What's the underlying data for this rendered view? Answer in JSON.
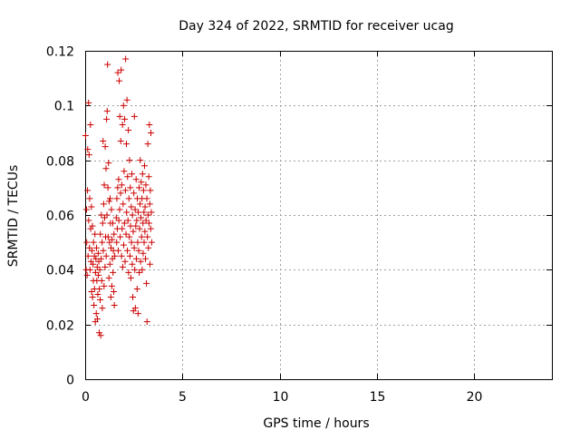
{
  "chart_data": {
    "type": "scatter",
    "title": "Day 324 of 2022, SRMTID for receiver ucag",
    "xlabel": "GPS time / hours",
    "ylabel": "SRMTID / TECUs",
    "xlim": [
      0,
      24
    ],
    "ylim": [
      0,
      0.12
    ],
    "x_ticks": [
      0,
      5,
      10,
      15,
      20
    ],
    "y_ticks": [
      0,
      0.02,
      0.04,
      0.06,
      0.08,
      0.1,
      0.12
    ],
    "x_tick_labels": [
      "0",
      "5",
      "10",
      "15",
      "20"
    ],
    "y_tick_labels": [
      "0",
      "0.02",
      "0.04",
      "0.06",
      "0.08",
      "0.1",
      "0.12"
    ],
    "grid": true,
    "marker": "plus",
    "color": "#cc0000",
    "series": [
      {
        "points": [
          [
            0.02,
            0.089
          ],
          [
            0.05,
            0.04
          ],
          [
            0.07,
            0.062
          ],
          [
            0.08,
            0.05
          ],
          [
            0.1,
            0.038
          ],
          [
            0.12,
            0.069
          ],
          [
            0.13,
            0.084
          ],
          [
            0.15,
            0.045
          ],
          [
            0.17,
            0.101
          ],
          [
            0.18,
            0.058
          ],
          [
            0.2,
            0.082
          ],
          [
            0.22,
            0.048
          ],
          [
            0.23,
            0.066
          ],
          [
            0.25,
            0.04
          ],
          [
            0.27,
            0.093
          ],
          [
            0.28,
            0.055
          ],
          [
            0.3,
            0.043
          ],
          [
            0.32,
            0.063
          ],
          [
            0.33,
            0.032
          ],
          [
            0.35,
            0.047
          ],
          [
            0.37,
            0.056
          ],
          [
            0.38,
            0.03
          ],
          [
            0.4,
            0.042
          ],
          [
            0.42,
            0.036
          ],
          [
            0.43,
            0.05
          ],
          [
            0.45,
            0.027
          ],
          [
            0.47,
            0.045
          ],
          [
            0.48,
            0.033
          ],
          [
            0.5,
            0.053
          ],
          [
            0.52,
            0.021
          ],
          [
            0.53,
            0.039
          ],
          [
            0.55,
            0.044
          ],
          [
            0.57,
            0.024
          ],
          [
            0.58,
            0.048
          ],
          [
            0.6,
            0.036
          ],
          [
            0.62,
            0.041
          ],
          [
            0.63,
            0.022
          ],
          [
            0.65,
            0.031
          ],
          [
            0.67,
            0.046
          ],
          [
            0.68,
            0.038
          ],
          [
            0.7,
            0.043
          ],
          [
            0.72,
            0.017
          ],
          [
            0.73,
            0.033
          ],
          [
            0.75,
            0.04
          ],
          [
            0.77,
            0.029
          ],
          [
            0.78,
            0.053
          ],
          [
            0.8,
            0.016
          ],
          [
            0.82,
            0.044
          ],
          [
            0.83,
            0.06
          ],
          [
            0.85,
            0.036
          ],
          [
            0.87,
            0.05
          ],
          [
            0.88,
            0.026
          ],
          [
            0.9,
            0.057
          ],
          [
            0.92,
            0.087
          ],
          [
            0.93,
            0.047
          ],
          [
            0.95,
            0.064
          ],
          [
            0.97,
            0.034
          ],
          [
            0.98,
            0.071
          ],
          [
            1.0,
            0.059
          ],
          [
            1.02,
            0.041
          ],
          [
            1.03,
            0.085
          ],
          [
            1.05,
            0.052
          ],
          [
            1.07,
            0.077
          ],
          [
            1.08,
            0.045
          ],
          [
            1.1,
            0.095
          ],
          [
            1.12,
            0.06
          ],
          [
            1.13,
            0.098
          ],
          [
            1.15,
            0.115
          ],
          [
            1.17,
            0.07
          ],
          [
            1.18,
            0.052
          ],
          [
            1.2,
            0.079
          ],
          [
            1.22,
            0.037
          ],
          [
            1.23,
            0.065
          ],
          [
            1.25,
            0.05
          ],
          [
            1.27,
            0.042
          ],
          [
            1.28,
            0.066
          ],
          [
            1.3,
            0.057
          ],
          [
            1.32,
            0.03
          ],
          [
            1.33,
            0.048
          ],
          [
            1.35,
            0.062
          ],
          [
            1.37,
            0.034
          ],
          [
            1.38,
            0.051
          ],
          [
            1.4,
            0.044
          ],
          [
            1.42,
            0.057
          ],
          [
            1.43,
            0.039
          ],
          [
            1.45,
            0.047
          ],
          [
            1.47,
            0.032
          ],
          [
            1.48,
            0.053
          ],
          [
            1.5,
            0.027
          ],
          [
            1.52,
            0.045
          ],
          [
            1.6,
            0.059
          ],
          [
            1.62,
            0.05
          ],
          [
            1.63,
            0.066
          ],
          [
            1.65,
            0.055
          ],
          [
            1.67,
            0.07
          ],
          [
            1.68,
            0.112
          ],
          [
            1.7,
            0.047
          ],
          [
            1.72,
            0.073
          ],
          [
            1.73,
            0.058
          ],
          [
            1.75,
            0.109
          ],
          [
            1.77,
            0.062
          ],
          [
            1.78,
            0.096
          ],
          [
            1.8,
            0.052
          ],
          [
            1.82,
            0.068
          ],
          [
            1.83,
            0.087
          ],
          [
            1.85,
            0.113
          ],
          [
            1.87,
            0.045
          ],
          [
            1.88,
            0.071
          ],
          [
            1.9,
            0.055
          ],
          [
            1.92,
            0.093
          ],
          [
            1.93,
            0.041
          ],
          [
            1.95,
            0.064
          ],
          [
            1.97,
            0.1
          ],
          [
            1.98,
            0.049
          ],
          [
            2.0,
            0.076
          ],
          [
            2.02,
            0.057
          ],
          [
            2.03,
            0.095
          ],
          [
            2.05,
            0.043
          ],
          [
            2.07,
            0.069
          ],
          [
            2.08,
            0.117
          ],
          [
            2.1,
            0.053
          ],
          [
            2.12,
            0.086
          ],
          [
            2.13,
            0.061
          ],
          [
            2.15,
            0.102
          ],
          [
            2.17,
            0.047
          ],
          [
            2.18,
            0.074
          ],
          [
            2.2,
            0.058
          ],
          [
            2.22,
            0.091
          ],
          [
            2.23,
            0.039
          ],
          [
            2.25,
            0.066
          ],
          [
            2.27,
            0.052
          ],
          [
            2.28,
            0.08
          ],
          [
            2.3,
            0.045
          ],
          [
            2.32,
            0.07
          ],
          [
            2.33,
            0.056
          ],
          [
            2.35,
            0.037
          ],
          [
            2.37,
            0.063
          ],
          [
            2.38,
            0.05
          ],
          [
            2.4,
            0.075
          ],
          [
            2.42,
            0.042
          ],
          [
            2.43,
            0.06
          ],
          [
            2.45,
            0.03
          ],
          [
            2.47,
            0.054
          ],
          [
            2.48,
            0.025
          ],
          [
            2.5,
            0.068
          ],
          [
            2.52,
            0.048
          ],
          [
            2.53,
            0.096
          ],
          [
            2.55,
            0.04
          ],
          [
            2.57,
            0.062
          ],
          [
            2.58,
            0.026
          ],
          [
            2.6,
            0.056
          ],
          [
            2.62,
            0.073
          ],
          [
            2.63,
            0.044
          ],
          [
            2.65,
            0.058
          ],
          [
            2.67,
            0.033
          ],
          [
            2.68,
            0.066
          ],
          [
            2.7,
            0.05
          ],
          [
            2.72,
            0.024
          ],
          [
            2.73,
            0.061
          ],
          [
            2.75,
            0.047
          ],
          [
            2.77,
            0.07
          ],
          [
            2.78,
            0.039
          ],
          [
            2.8,
            0.055
          ],
          [
            2.82,
            0.064
          ],
          [
            2.83,
            0.08
          ],
          [
            2.85,
            0.043
          ],
          [
            2.87,
            0.059
          ],
          [
            2.88,
            0.072
          ],
          [
            2.9,
            0.052
          ],
          [
            2.92,
            0.066
          ],
          [
            2.93,
            0.04
          ],
          [
            2.95,
            0.075
          ],
          [
            2.97,
            0.057
          ],
          [
            2.98,
            0.046
          ],
          [
            3.0,
            0.069
          ],
          [
            3.02,
            0.061
          ],
          [
            3.03,
            0.05
          ],
          [
            3.05,
            0.078
          ],
          [
            3.07,
            0.054
          ],
          [
            3.08,
            0.063
          ],
          [
            3.1,
            0.044
          ],
          [
            3.12,
            0.071
          ],
          [
            3.13,
            0.058
          ],
          [
            3.15,
            0.035
          ],
          [
            3.17,
            0.066
          ],
          [
            3.18,
            0.021
          ],
          [
            3.2,
            0.052
          ],
          [
            3.22,
            0.086
          ],
          [
            3.23,
            0.06
          ],
          [
            3.25,
            0.048
          ],
          [
            3.27,
            0.074
          ],
          [
            3.28,
            0.057
          ],
          [
            3.3,
            0.093
          ],
          [
            3.32,
            0.064
          ],
          [
            3.33,
            0.042
          ],
          [
            3.35,
            0.069
          ],
          [
            3.37,
            0.055
          ],
          [
            3.38,
            0.09
          ],
          [
            3.4,
            0.061
          ],
          [
            3.42,
            0.05
          ]
        ]
      }
    ]
  }
}
